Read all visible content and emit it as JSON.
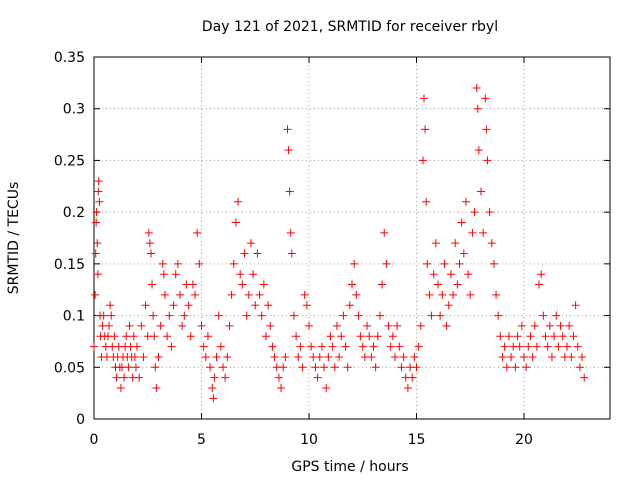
{
  "chart_data": {
    "type": "scatter",
    "title": "Day 121 of 2021, SRMTID for receiver rbyl",
    "xlabel": "GPS time / hours",
    "ylabel": "SRMTID / TECUs",
    "xlim": [
      0,
      24
    ],
    "ylim": [
      0,
      0.35
    ],
    "xticks": [
      0,
      5,
      10,
      15,
      20
    ],
    "xtick_labels": [
      "0",
      "5",
      "10",
      "15",
      "20"
    ],
    "yticks": [
      0,
      0.05,
      0.1,
      0.15,
      0.2,
      0.25,
      0.3,
      0.35
    ],
    "ytick_labels": [
      "0",
      "0.05",
      "0.1",
      "0.15",
      "0.2",
      "0.25",
      "0.3",
      "0.35"
    ],
    "grid": true,
    "marker": "+",
    "color": "#ff0000",
    "series": [
      {
        "points": [
          [
            0.0,
            0.07
          ],
          [
            0.05,
            0.12
          ],
          [
            0.08,
            0.16
          ],
          [
            0.1,
            0.19
          ],
          [
            0.12,
            0.2
          ],
          [
            0.15,
            0.17
          ],
          [
            0.18,
            0.14
          ],
          [
            0.2,
            0.22
          ],
          [
            0.22,
            0.23
          ],
          [
            0.25,
            0.21
          ],
          [
            0.28,
            0.1
          ],
          [
            0.3,
            0.08
          ],
          [
            0.35,
            0.06
          ],
          [
            0.4,
            0.09
          ],
          [
            0.45,
            0.1
          ],
          [
            0.5,
            0.08
          ],
          [
            0.55,
            0.07
          ],
          [
            0.6,
            0.06
          ],
          [
            0.65,
            0.08
          ],
          [
            0.7,
            0.09
          ],
          [
            0.75,
            0.11
          ],
          [
            0.8,
            0.1
          ],
          [
            0.85,
            0.07
          ],
          [
            0.9,
            0.06
          ],
          [
            0.95,
            0.08
          ],
          [
            1.0,
            0.05
          ],
          [
            1.05,
            0.04
          ],
          [
            1.1,
            0.06
          ],
          [
            1.15,
            0.07
          ],
          [
            1.2,
            0.05
          ],
          [
            1.25,
            0.03
          ],
          [
            1.3,
            0.05
          ],
          [
            1.35,
            0.06
          ],
          [
            1.4,
            0.04
          ],
          [
            1.45,
            0.07
          ],
          [
            1.5,
            0.08
          ],
          [
            1.55,
            0.06
          ],
          [
            1.6,
            0.05
          ],
          [
            1.65,
            0.09
          ],
          [
            1.7,
            0.07
          ],
          [
            1.75,
            0.06
          ],
          [
            1.8,
            0.04
          ],
          [
            1.85,
            0.08
          ],
          [
            1.9,
            0.06
          ],
          [
            1.95,
            0.05
          ],
          [
            2.0,
            0.07
          ],
          [
            2.1,
            0.04
          ],
          [
            2.2,
            0.09
          ],
          [
            2.3,
            0.06
          ],
          [
            2.4,
            0.11
          ],
          [
            2.5,
            0.08
          ],
          [
            2.55,
            0.18
          ],
          [
            2.6,
            0.17
          ],
          [
            2.65,
            0.16
          ],
          [
            2.7,
            0.13
          ],
          [
            2.75,
            0.1
          ],
          [
            2.8,
            0.08
          ],
          [
            2.85,
            0.05
          ],
          [
            2.9,
            0.03
          ],
          [
            3.0,
            0.06
          ],
          [
            3.1,
            0.09
          ],
          [
            3.2,
            0.15
          ],
          [
            3.25,
            0.14
          ],
          [
            3.3,
            0.12
          ],
          [
            3.4,
            0.08
          ],
          [
            3.5,
            0.1
          ],
          [
            3.6,
            0.07
          ],
          [
            3.7,
            0.11
          ],
          [
            3.8,
            0.14
          ],
          [
            3.9,
            0.15
          ],
          [
            4.0,
            0.12
          ],
          [
            4.1,
            0.09
          ],
          [
            4.2,
            0.1
          ],
          [
            4.3,
            0.13
          ],
          [
            4.4,
            0.11
          ],
          [
            4.5,
            0.08
          ],
          [
            4.6,
            0.13
          ],
          [
            4.7,
            0.12
          ],
          [
            4.8,
            0.18
          ],
          [
            4.9,
            0.15
          ],
          [
            5.0,
            0.09
          ],
          [
            5.1,
            0.07
          ],
          [
            5.2,
            0.06
          ],
          [
            5.3,
            0.08
          ],
          [
            5.4,
            0.05
          ],
          [
            5.5,
            0.03
          ],
          [
            5.55,
            0.02
          ],
          [
            5.6,
            0.04
          ],
          [
            5.7,
            0.06
          ],
          [
            5.8,
            0.1
          ],
          [
            5.9,
            0.07
          ],
          [
            6.0,
            0.05
          ],
          [
            6.1,
            0.04
          ],
          [
            6.2,
            0.06
          ],
          [
            6.3,
            0.09
          ],
          [
            6.4,
            0.12
          ],
          [
            6.5,
            0.15
          ],
          [
            6.6,
            0.19
          ],
          [
            6.7,
            0.21
          ],
          [
            6.8,
            0.14
          ],
          [
            6.9,
            0.13
          ],
          [
            7.0,
            0.16
          ],
          [
            7.1,
            0.1
          ],
          [
            7.2,
            0.12
          ],
          [
            7.3,
            0.17
          ],
          [
            7.4,
            0.14
          ],
          [
            7.5,
            0.11
          ],
          [
            7.6,
            0.16
          ],
          [
            7.7,
            0.12
          ],
          [
            7.8,
            0.1
          ],
          [
            7.9,
            0.13
          ],
          [
            8.0,
            0.08
          ],
          [
            8.1,
            0.11
          ],
          [
            8.2,
            0.09
          ],
          [
            8.3,
            0.07
          ],
          [
            8.4,
            0.06
          ],
          [
            8.5,
            0.05
          ],
          [
            8.6,
            0.04
          ],
          [
            8.7,
            0.03
          ],
          [
            8.8,
            0.05
          ],
          [
            8.9,
            0.06
          ],
          [
            9.0,
            0.28
          ],
          [
            9.05,
            0.26
          ],
          [
            9.1,
            0.22
          ],
          [
            9.15,
            0.18
          ],
          [
            9.2,
            0.16
          ],
          [
            9.3,
            0.1
          ],
          [
            9.4,
            0.08
          ],
          [
            9.5,
            0.06
          ],
          [
            9.6,
            0.07
          ],
          [
            9.7,
            0.05
          ],
          [
            9.8,
            0.12
          ],
          [
            9.9,
            0.11
          ],
          [
            10.0,
            0.09
          ],
          [
            10.1,
            0.07
          ],
          [
            10.2,
            0.06
          ],
          [
            10.3,
            0.05
          ],
          [
            10.4,
            0.04
          ],
          [
            10.5,
            0.06
          ],
          [
            10.6,
            0.07
          ],
          [
            10.7,
            0.05
          ],
          [
            10.8,
            0.03
          ],
          [
            10.9,
            0.06
          ],
          [
            11.0,
            0.08
          ],
          [
            11.1,
            0.07
          ],
          [
            11.2,
            0.05
          ],
          [
            11.3,
            0.09
          ],
          [
            11.4,
            0.06
          ],
          [
            11.5,
            0.08
          ],
          [
            11.6,
            0.1
          ],
          [
            11.7,
            0.07
          ],
          [
            11.8,
            0.05
          ],
          [
            11.9,
            0.11
          ],
          [
            12.0,
            0.13
          ],
          [
            12.1,
            0.15
          ],
          [
            12.2,
            0.12
          ],
          [
            12.3,
            0.1
          ],
          [
            12.4,
            0.08
          ],
          [
            12.5,
            0.07
          ],
          [
            12.6,
            0.06
          ],
          [
            12.7,
            0.09
          ],
          [
            12.8,
            0.08
          ],
          [
            12.9,
            0.06
          ],
          [
            13.0,
            0.07
          ],
          [
            13.1,
            0.05
          ],
          [
            13.2,
            0.08
          ],
          [
            13.3,
            0.1
          ],
          [
            13.4,
            0.13
          ],
          [
            13.5,
            0.18
          ],
          [
            13.6,
            0.15
          ],
          [
            13.7,
            0.09
          ],
          [
            13.8,
            0.07
          ],
          [
            13.9,
            0.08
          ],
          [
            14.0,
            0.06
          ],
          [
            14.1,
            0.09
          ],
          [
            14.2,
            0.07
          ],
          [
            14.3,
            0.05
          ],
          [
            14.4,
            0.06
          ],
          [
            14.5,
            0.04
          ],
          [
            14.6,
            0.03
          ],
          [
            14.7,
            0.05
          ],
          [
            14.8,
            0.04
          ],
          [
            14.9,
            0.06
          ],
          [
            15.0,
            0.05
          ],
          [
            15.1,
            0.07
          ],
          [
            15.2,
            0.09
          ],
          [
            15.3,
            0.25
          ],
          [
            15.35,
            0.31
          ],
          [
            15.4,
            0.28
          ],
          [
            15.45,
            0.21
          ],
          [
            15.5,
            0.15
          ],
          [
            15.6,
            0.12
          ],
          [
            15.7,
            0.1
          ],
          [
            15.8,
            0.14
          ],
          [
            15.9,
            0.17
          ],
          [
            16.0,
            0.13
          ],
          [
            16.1,
            0.1
          ],
          [
            16.2,
            0.12
          ],
          [
            16.3,
            0.15
          ],
          [
            16.4,
            0.09
          ],
          [
            16.5,
            0.11
          ],
          [
            16.6,
            0.14
          ],
          [
            16.7,
            0.12
          ],
          [
            16.8,
            0.17
          ],
          [
            16.9,
            0.13
          ],
          [
            17.0,
            0.15
          ],
          [
            17.1,
            0.19
          ],
          [
            17.2,
            0.16
          ],
          [
            17.3,
            0.21
          ],
          [
            17.4,
            0.14
          ],
          [
            17.5,
            0.12
          ],
          [
            17.6,
            0.18
          ],
          [
            17.7,
            0.2
          ],
          [
            17.8,
            0.32
          ],
          [
            17.85,
            0.3
          ],
          [
            17.9,
            0.26
          ],
          [
            18.0,
            0.22
          ],
          [
            18.1,
            0.18
          ],
          [
            18.2,
            0.31
          ],
          [
            18.25,
            0.28
          ],
          [
            18.3,
            0.25
          ],
          [
            18.4,
            0.2
          ],
          [
            18.5,
            0.17
          ],
          [
            18.6,
            0.15
          ],
          [
            18.7,
            0.12
          ],
          [
            18.8,
            0.1
          ],
          [
            18.9,
            0.08
          ],
          [
            19.0,
            0.06
          ],
          [
            19.1,
            0.07
          ],
          [
            19.2,
            0.05
          ],
          [
            19.3,
            0.08
          ],
          [
            19.4,
            0.06
          ],
          [
            19.5,
            0.07
          ],
          [
            19.6,
            0.05
          ],
          [
            19.7,
            0.08
          ],
          [
            19.8,
            0.07
          ],
          [
            19.9,
            0.09
          ],
          [
            20.0,
            0.06
          ],
          [
            20.1,
            0.05
          ],
          [
            20.2,
            0.07
          ],
          [
            20.3,
            0.08
          ],
          [
            20.4,
            0.06
          ],
          [
            20.5,
            0.09
          ],
          [
            20.6,
            0.07
          ],
          [
            20.7,
            0.13
          ],
          [
            20.8,
            0.14
          ],
          [
            20.9,
            0.1
          ],
          [
            21.0,
            0.08
          ],
          [
            21.1,
            0.07
          ],
          [
            21.2,
            0.09
          ],
          [
            21.3,
            0.06
          ],
          [
            21.4,
            0.08
          ],
          [
            21.5,
            0.1
          ],
          [
            21.6,
            0.07
          ],
          [
            21.7,
            0.09
          ],
          [
            21.8,
            0.08
          ],
          [
            21.9,
            0.06
          ],
          [
            22.0,
            0.07
          ],
          [
            22.1,
            0.09
          ],
          [
            22.2,
            0.06
          ],
          [
            22.3,
            0.08
          ],
          [
            22.4,
            0.11
          ],
          [
            22.5,
            0.07
          ],
          [
            22.6,
            0.05
          ],
          [
            22.7,
            0.06
          ],
          [
            22.8,
            0.04
          ]
        ]
      }
    ]
  }
}
